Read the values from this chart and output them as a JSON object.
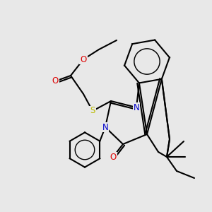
{
  "background_color": "#e8e8e8",
  "bond_color": "#000000",
  "atom_colors": {
    "O": "#dd0000",
    "N": "#0000cc",
    "S": "#bbbb00",
    "C": "#000000"
  },
  "figsize": [
    3.0,
    3.0
  ],
  "dpi": 100
}
